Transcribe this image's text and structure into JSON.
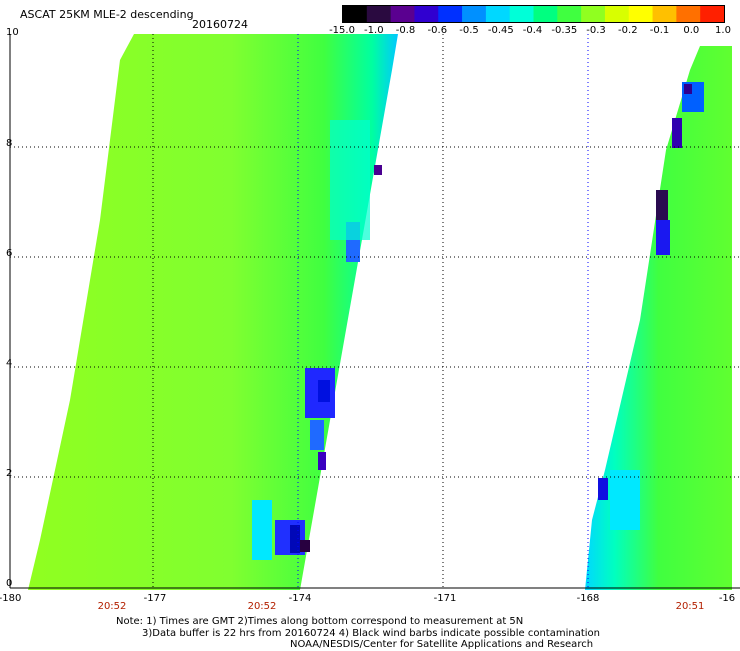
{
  "title": "ASCAT 25KM MLE-2 descending",
  "date": "20160724",
  "colorbar": {
    "labels": [
      "-15.0",
      "-1.0",
      "-0.8",
      "-0.6",
      "-0.5",
      "-0.45",
      "-0.4",
      "-0.35",
      "-0.3",
      "-0.2",
      "-0.1",
      "0.0",
      "1.0"
    ],
    "colors": [
      "#000000",
      "#2a0a40",
      "#5a0090",
      "#3000d0",
      "#0030ff",
      "#0090ff",
      "#00d8ff",
      "#00ffd8",
      "#00ff80",
      "#40ff40",
      "#90ff20",
      "#d8ff00",
      "#ffff00",
      "#ffc000",
      "#ff7000",
      "#ff2000"
    ]
  },
  "axes": {
    "y_ticks": [
      "10",
      "8",
      "6",
      "4",
      "2",
      "0"
    ],
    "x_ticks": [
      "-180",
      "-177",
      "-174",
      "-171",
      "-168",
      "-16"
    ]
  },
  "times": [
    "20:52",
    "20:52",
    "20:51"
  ],
  "note": {
    "line1": "Note: 1) Times are GMT 2)Times along bottom correspond to measurement at 5N",
    "line2": "3)Data buffer is 22 hrs from 20160724 4) Black wind barbs indicate possible contamination",
    "line3": "NOAA/NESDIS/Center for Satellite Applications and Research"
  }
}
